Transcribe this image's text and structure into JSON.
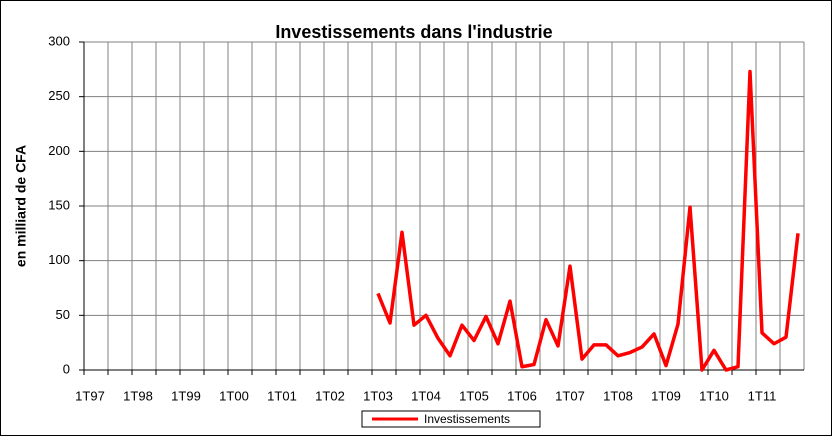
{
  "chart_data": {
    "type": "line",
    "title": "Investissements dans l'industrie",
    "y_label": "en milliard de CFA",
    "categories": [
      "1T97",
      null,
      null,
      null,
      "1T98",
      null,
      null,
      null,
      "1T99",
      null,
      null,
      null,
      "1T00",
      null,
      null,
      null,
      "1T01",
      null,
      null,
      null,
      "1T02",
      null,
      null,
      null,
      "1T03",
      null,
      null,
      null,
      "1T04",
      null,
      null,
      null,
      "1T05",
      null,
      null,
      null,
      "1T06",
      null,
      null,
      null,
      "1T07",
      null,
      null,
      null,
      "1T08",
      null,
      null,
      null,
      "1T09",
      null,
      null,
      null,
      "1T10",
      null,
      null,
      null,
      "1T11",
      null,
      null,
      null
    ],
    "series": [
      {
        "name": "Investissements",
        "color": "#ff0000",
        "values": [
          null,
          null,
          null,
          null,
          null,
          null,
          null,
          null,
          null,
          null,
          null,
          null,
          null,
          null,
          null,
          null,
          null,
          null,
          null,
          null,
          null,
          null,
          null,
          null,
          70,
          43,
          126,
          41,
          50,
          29,
          13,
          41,
          27,
          49,
          24,
          63,
          3,
          5,
          46,
          22,
          95,
          10,
          23,
          23,
          13,
          16,
          21,
          33,
          4,
          42,
          149,
          0,
          18,
          0,
          3,
          273,
          34,
          24,
          30,
          125
        ]
      }
    ],
    "ylim": [
      0,
      300
    ],
    "yticks": [
      0,
      50,
      100,
      150,
      200,
      250,
      300
    ],
    "grid": true,
    "legend": "bottom"
  }
}
